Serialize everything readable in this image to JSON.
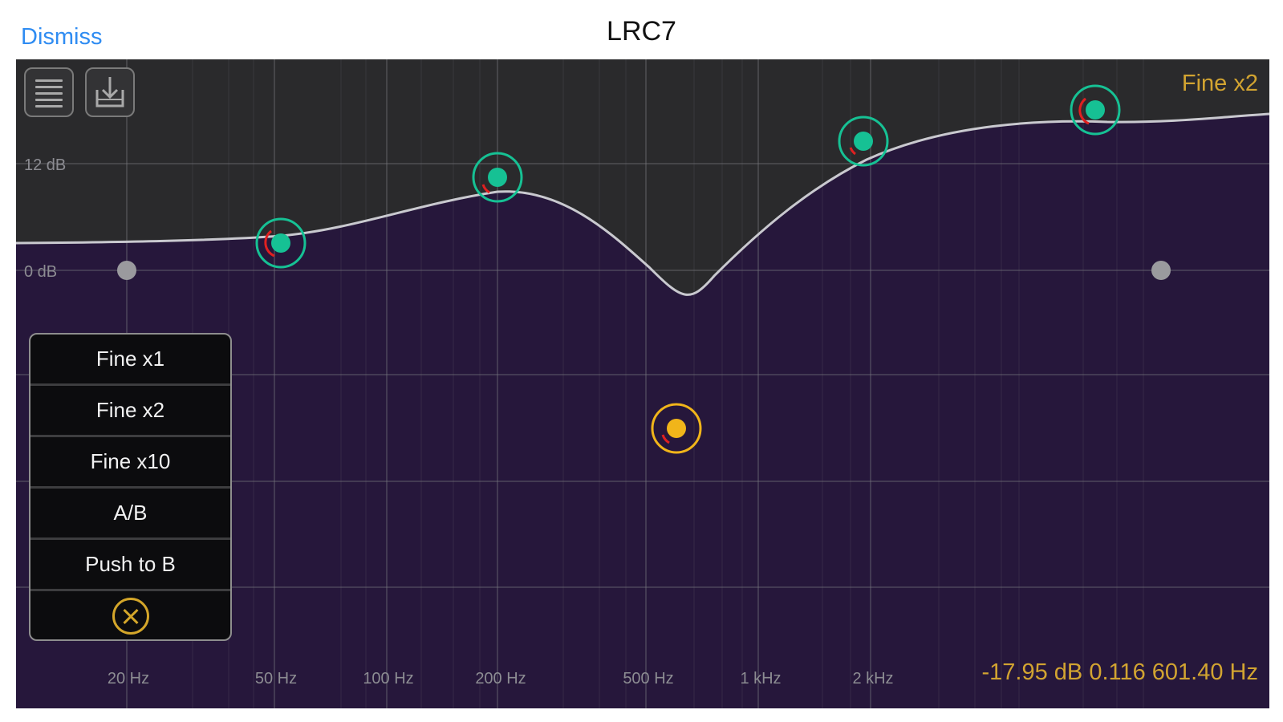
{
  "header": {
    "dismiss_label": "Dismiss",
    "title": "LRC7"
  },
  "eq": {
    "mode_label": "Fine x2",
    "readout": "-17.95 dB 0.116 601.40 Hz",
    "y_labels": [
      "12 dB",
      "0 dB"
    ],
    "x_labels": [
      "20 Hz",
      "50 Hz",
      "100 Hz",
      "200 Hz",
      "500 Hz",
      "1 kHz",
      "2 kHz"
    ]
  },
  "popup": {
    "items": [
      "Fine x1",
      "Fine x2",
      "Fine x10",
      "A/B",
      "Push to B"
    ],
    "close_icon": "close-circle-icon"
  },
  "toolbar": {
    "menu_icon": "list-menu-icon",
    "save_icon": "download-icon"
  },
  "colors": {
    "curve_fill": "#26173b",
    "band_active": "#16c194",
    "band_selected": "#f1b51a",
    "readout": "#d2a431",
    "link": "#2f8cf2"
  }
}
